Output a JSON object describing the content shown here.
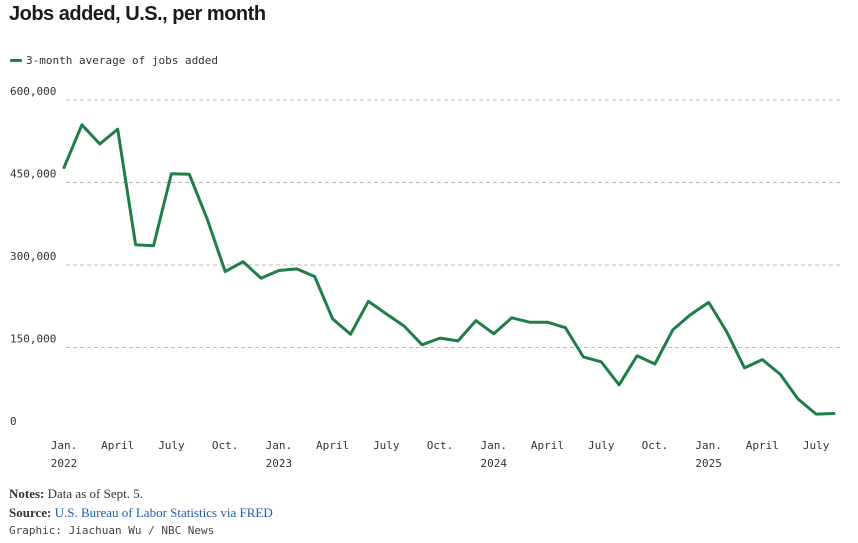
{
  "chart_data": {
    "type": "line",
    "title": "Jobs added, U.S., per month",
    "series": [
      {
        "name": "3-month average of jobs added",
        "color": "#1f7d4a",
        "values": [
          477000,
          555000,
          520000,
          547000,
          337000,
          335000,
          466000,
          465000,
          383000,
          288000,
          306000,
          276000,
          290000,
          293000,
          279000,
          202000,
          174000,
          234000,
          211000,
          189000,
          155000,
          167000,
          162000,
          199000,
          175000,
          204000,
          196000,
          196000,
          186000,
          133000,
          124000,
          82000,
          135000,
          120000,
          182000,
          210000,
          232000,
          179000,
          113000,
          128000,
          101000,
          56000,
          29000,
          30000
        ]
      }
    ],
    "x_start": "2022-01",
    "ylim": [
      0,
      600000
    ],
    "yticks": [
      0,
      150000,
      300000,
      450000,
      600000
    ],
    "ytick_labels": [
      "0",
      "150,000",
      "300,000",
      "450,000",
      "600,000"
    ],
    "xticks": [
      {
        "index": 0,
        "label": "Jan.",
        "sub": "2022"
      },
      {
        "index": 3,
        "label": "April",
        "sub": ""
      },
      {
        "index": 6,
        "label": "July",
        "sub": ""
      },
      {
        "index": 9,
        "label": "Oct.",
        "sub": ""
      },
      {
        "index": 12,
        "label": "Jan.",
        "sub": "2023"
      },
      {
        "index": 15,
        "label": "April",
        "sub": ""
      },
      {
        "index": 18,
        "label": "July",
        "sub": ""
      },
      {
        "index": 21,
        "label": "Oct.",
        "sub": ""
      },
      {
        "index": 24,
        "label": "Jan.",
        "sub": "2024"
      },
      {
        "index": 27,
        "label": "April",
        "sub": ""
      },
      {
        "index": 30,
        "label": "July",
        "sub": ""
      },
      {
        "index": 33,
        "label": "Oct.",
        "sub": ""
      },
      {
        "index": 36,
        "label": "Jan.",
        "sub": "2025"
      },
      {
        "index": 39,
        "label": "April",
        "sub": ""
      },
      {
        "index": 42,
        "label": "July",
        "sub": ""
      }
    ],
    "grid": true,
    "legend_position": "top-left"
  },
  "notes": {
    "label": "Notes:",
    "text": " Data as of Sept. 5."
  },
  "source": {
    "label": "Source:",
    "text": "U.S. Bureau of Labor Statistics via FRED"
  },
  "credit": "Graphic: Jiachuan Wu / NBC News"
}
